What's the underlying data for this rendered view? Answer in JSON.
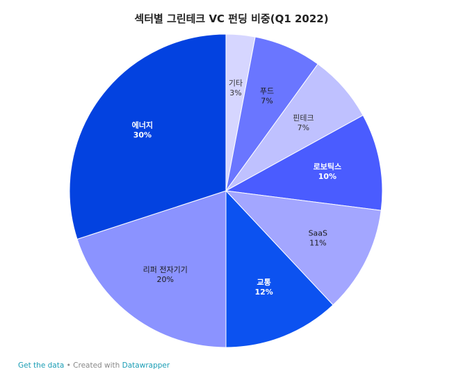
{
  "chart_data": {
    "type": "pie",
    "title": "섹터별 그린테크 VC 펀딩 비중(Q1 2022)",
    "slices": [
      {
        "label": "기타",
        "value": 3,
        "value_label": "3%",
        "color": "#d6d6ff",
        "text_color": "#333333",
        "bold": false
      },
      {
        "label": "푸드",
        "value": 7,
        "value_label": "7%",
        "color": "#6a76ff",
        "text_color": "#1a1a1a",
        "bold": false
      },
      {
        "label": "핀테크",
        "value": 7,
        "value_label": "7%",
        "color": "#bfc1ff",
        "text_color": "#333333",
        "bold": false
      },
      {
        "label": "로보틱스",
        "value": 10,
        "value_label": "10%",
        "color": "#4a5cff",
        "text_color": "#ffffff",
        "bold": true
      },
      {
        "label": "SaaS",
        "value": 11,
        "value_label": "11%",
        "color": "#a3a6ff",
        "text_color": "#1a1a1a",
        "bold": false
      },
      {
        "label": "교통",
        "value": 12,
        "value_label": "12%",
        "color": "#0c52f0",
        "text_color": "#ffffff",
        "bold": true
      },
      {
        "label": "리퍼 전자기기",
        "value": 20,
        "value_label": "20%",
        "color": "#8b93ff",
        "text_color": "#1a1a1a",
        "bold": false
      },
      {
        "label": "에너지",
        "value": 30,
        "value_label": "30%",
        "color": "#0342e0",
        "text_color": "#ffffff",
        "bold": true
      }
    ]
  },
  "footer": {
    "get_data": "Get the data",
    "separator": " • Created with ",
    "tool": "Datawrapper"
  }
}
